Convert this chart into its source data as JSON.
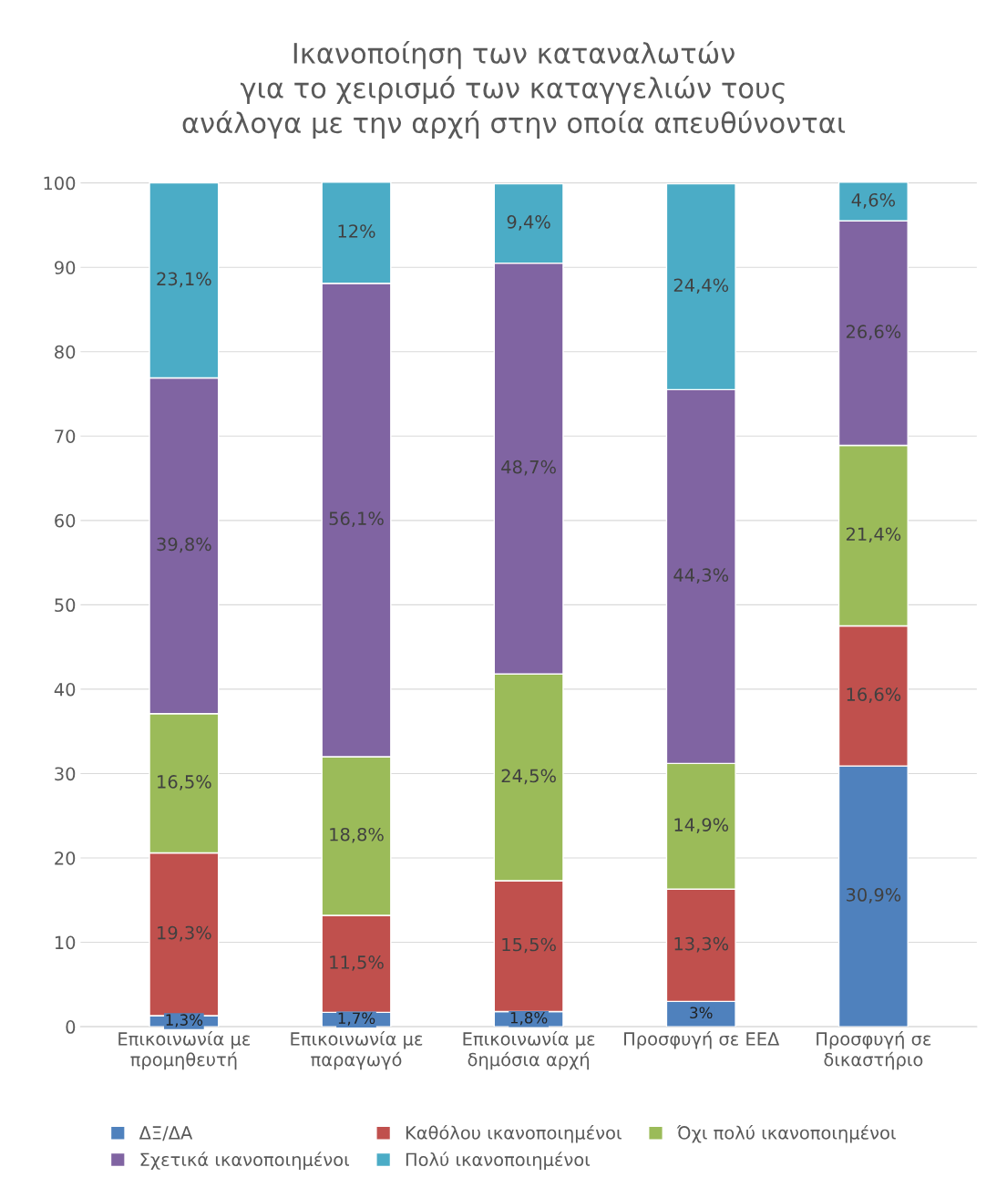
{
  "chart_data": {
    "type": "bar",
    "stacked": true,
    "title": "Ικανοποίηση των καταναλωτών\nγια το χειρισμό των καταγγελιών τους\nανάλογα με την αρχή στην οποία απευθύνονται",
    "categories": [
      "Επικοινωνία με\nπρομηθευτή",
      "Επικοινωνία με\nπαραγωγό",
      "Επικοινωνία με\nδημόσια αρχή",
      "Προσφυγή σε ΕΕΔ",
      "Προσφυγή σε\nδικαστήριο"
    ],
    "series": [
      {
        "name": "ΔΞ/ΔΑ",
        "color": "#4f81bd",
        "values": [
          1.3,
          1.7,
          1.8,
          3,
          30.9
        ],
        "value_labels": [
          "1,3%",
          "1,7%",
          "1,8%",
          "3%",
          "30,9%"
        ]
      },
      {
        "name": "Καθόλου ικανοποιημένοι",
        "color": "#c0504d",
        "values": [
          19.3,
          11.5,
          15.5,
          13.3,
          16.6
        ],
        "value_labels": [
          "19,3%",
          "11,5%",
          "15,5%",
          "13,3%",
          "16,6%"
        ]
      },
      {
        "name": "Όχι πολύ ικανοποιημένοι",
        "color": "#9bbb59",
        "values": [
          16.5,
          18.8,
          24.5,
          14.9,
          21.4
        ],
        "value_labels": [
          "16,5%",
          "18,8%",
          "24,5%",
          "14,9%",
          "21,4%"
        ]
      },
      {
        "name": "Σχετικά ικανοποιημένοι",
        "color": "#8064a2",
        "values": [
          39.8,
          56.1,
          48.7,
          44.3,
          26.6
        ],
        "value_labels": [
          "39,8%",
          "56,1%",
          "48,7%",
          "44,3%",
          "26,6%"
        ]
      },
      {
        "name": "Πολύ ικανοποιημένοι",
        "color": "#4bacc6",
        "values": [
          23.1,
          12,
          9.4,
          24.4,
          4.6
        ],
        "value_labels": [
          "23,1%",
          "12%",
          "9,4%",
          "24,4%",
          "4,6%"
        ]
      }
    ],
    "ylim": [
      0,
      100.1
    ],
    "yticks": [
      0,
      10,
      20,
      30,
      40,
      50,
      60,
      70,
      80,
      90,
      100
    ],
    "grid": "y",
    "legend": "bottom"
  }
}
